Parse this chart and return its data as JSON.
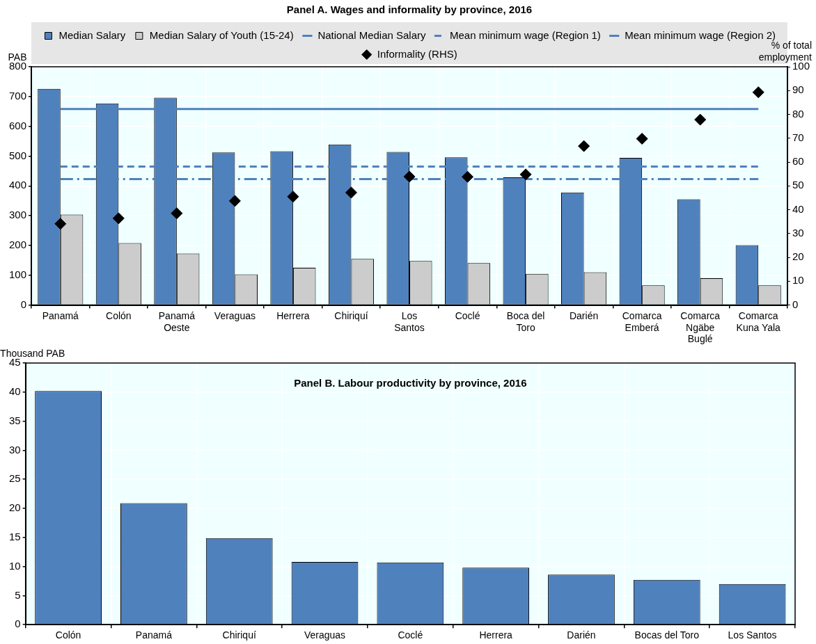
{
  "chart_data": [
    {
      "type": "bar",
      "title": "Panel A. Wages and informality by province, 2016",
      "ylabel": "PAB",
      "y2label": "% of total employment",
      "categories": [
        "Panamá",
        "Colón",
        "Panamá Oeste",
        "Veraguas",
        "Herrera",
        "Chiriquí",
        "Los Santos",
        "Coclé",
        "Boca del Toro",
        "Darién",
        "Comarca Emberá",
        "Comarca Ngäbe Buglé",
        "Comarca Kuna Yala"
      ],
      "series": [
        {
          "name": "Median Salary",
          "color": "#4f81bd",
          "values": [
            726,
            677,
            696,
            512,
            516,
            539,
            514,
            496,
            429,
            378,
            494,
            355,
            201
          ]
        },
        {
          "name": "Median Salary of Youth (15-24)",
          "color": "#cccccc",
          "values": [
            304,
            208,
            173,
            103,
            125,
            155,
            148,
            141,
            105,
            110,
            66,
            90,
            66
          ]
        },
        {
          "name": "National Median Salary",
          "type": "line",
          "color": "#4f81bd",
          "line_style": "solid",
          "marker": "none",
          "values": [
            658,
            658,
            658,
            658,
            658,
            658,
            658,
            658,
            658,
            658,
            658,
            658,
            658
          ]
        },
        {
          "name": "Mean minimum wage (Region 1)",
          "type": "line",
          "color": "#4f81bd",
          "line_style": "dashed",
          "marker": "none",
          "values": [
            465,
            465,
            465,
            465,
            465,
            465,
            465,
            465,
            465,
            465,
            465,
            465,
            465
          ]
        },
        {
          "name": "Mean minimum wage (Region 2)",
          "type": "line",
          "color": "#4f81bd",
          "line_style": "dashdot",
          "marker": "none",
          "values": [
            423,
            423,
            423,
            423,
            423,
            423,
            423,
            423,
            423,
            423,
            423,
            423,
            423
          ]
        },
        {
          "name": "Informality (RHS)",
          "type": "scatter",
          "axis": "y2",
          "color": "#000000",
          "marker": "diamond",
          "values": [
            34.1,
            36.4,
            38.5,
            43.7,
            45.5,
            47.2,
            53.9,
            53.8,
            54.8,
            66.7,
            69.8,
            77.8,
            89.3
          ]
        }
      ],
      "ylim": [
        0,
        800
      ],
      "yticks": [
        0,
        100,
        200,
        300,
        400,
        500,
        600,
        700,
        800
      ],
      "y2lim": [
        0,
        100
      ],
      "y2ticks": [
        0,
        10,
        20,
        30,
        40,
        50,
        60,
        70,
        80,
        90,
        100
      ],
      "grid": true,
      "legend": "top"
    },
    {
      "type": "bar",
      "title": "Panel B. Labour productivity by province, 2016",
      "ylabel": "Thousand PAB",
      "categories": [
        "Colón",
        "Panamá",
        "Chiriquí",
        "Veraguas",
        "Coclé",
        "Herrera",
        "Darién",
        "Bocas del Toro",
        "Los Santos"
      ],
      "series": [
        {
          "color": "#4f81bd",
          "values": [
            40.2,
            20.9,
            14.9,
            10.8,
            10.7,
            9.8,
            8.6,
            7.7,
            7.0
          ]
        }
      ],
      "ylim": [
        0,
        45
      ],
      "yticks": [
        0,
        5,
        10,
        15,
        20,
        25,
        30,
        35,
        40,
        45
      ],
      "grid": true
    }
  ]
}
